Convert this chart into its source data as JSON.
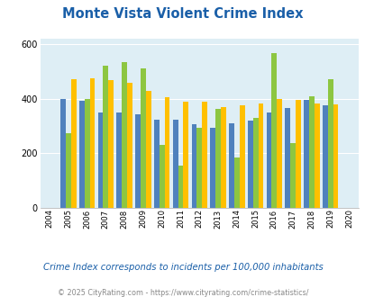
{
  "title": "Monte Vista Violent Crime Index",
  "years": [
    2004,
    2005,
    2006,
    2007,
    2008,
    2009,
    2010,
    2011,
    2012,
    2013,
    2014,
    2015,
    2016,
    2017,
    2018,
    2019,
    2020
  ],
  "monte_vista": [
    null,
    275,
    400,
    520,
    535,
    510,
    232,
    155,
    295,
    362,
    183,
    328,
    567,
    238,
    410,
    470,
    null
  ],
  "colorado": [
    null,
    400,
    393,
    350,
    348,
    342,
    323,
    323,
    306,
    295,
    310,
    320,
    348,
    365,
    397,
    375,
    null
  ],
  "national": [
    null,
    472,
    475,
    468,
    458,
    430,
    405,
    390,
    390,
    368,
    376,
    383,
    400,
    394,
    381,
    380,
    null
  ],
  "color_mv": "#8dc641",
  "color_co": "#4f81bd",
  "color_nat": "#ffc000",
  "bg_color": "#deeef5",
  "ylim": [
    0,
    620
  ],
  "yticks": [
    0,
    200,
    400,
    600
  ],
  "subtitle": "Crime Index corresponds to incidents per 100,000 inhabitants",
  "footer": "© 2025 CityRating.com - https://www.cityrating.com/crime-statistics/",
  "title_color": "#1a5fa8",
  "subtitle_color": "#1a5fa8",
  "footer_color": "#888888"
}
